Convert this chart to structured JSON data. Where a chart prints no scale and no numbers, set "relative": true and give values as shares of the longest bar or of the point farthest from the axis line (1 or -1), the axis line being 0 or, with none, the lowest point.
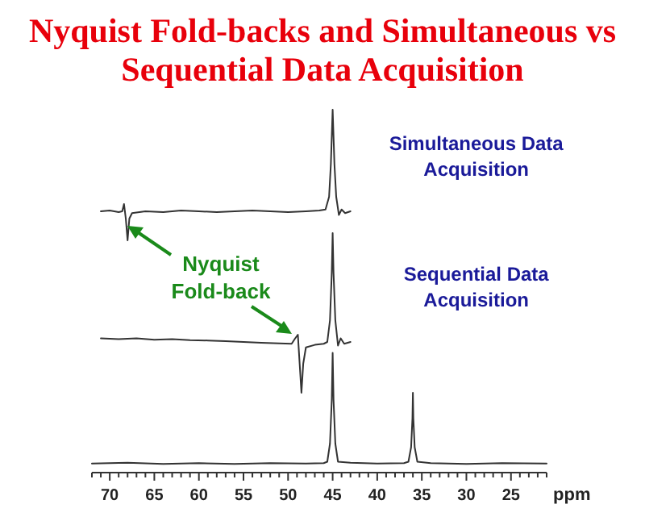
{
  "chart_data": {
    "type": "line",
    "relative": true,
    "title": "Nyquist Fold-backs and Simultaneous vs Sequential Data Acquisition",
    "xlabel": "ppm",
    "xlim": [
      72,
      21
    ],
    "xticks": [
      70,
      65,
      60,
      55,
      50,
      45,
      40,
      35,
      30,
      25,
      {
        "value": 72,
        "label": null
      },
      {
        "value": 71,
        "label": null
      },
      {
        "value": 69,
        "label": null
      },
      {
        "value": 68,
        "label": null
      },
      {
        "value": 67,
        "label": null
      },
      {
        "value": 66,
        "label": null
      },
      {
        "value": 64,
        "label": null
      },
      {
        "value": 63,
        "label": null
      },
      {
        "value": 62,
        "label": null
      },
      {
        "value": 61,
        "label": null
      },
      {
        "value": 59,
        "label": null
      },
      {
        "value": 58,
        "label": null
      },
      {
        "value": 57,
        "label": null
      },
      {
        "value": 56,
        "label": null
      },
      {
        "value": 54,
        "label": null
      },
      {
        "value": 53,
        "label": null
      },
      {
        "value": 52,
        "label": null
      },
      {
        "value": 51,
        "label": null
      },
      {
        "value": 49,
        "label": null
      },
      {
        "value": 48,
        "label": null
      },
      {
        "value": 47,
        "label": null
      },
      {
        "value": 46,
        "label": null
      },
      {
        "value": 44,
        "label": null
      },
      {
        "value": 43,
        "label": null
      },
      {
        "value": 42,
        "label": null
      },
      {
        "value": 41,
        "label": null
      },
      {
        "value": 39,
        "label": null
      },
      {
        "value": 38,
        "label": null
      },
      {
        "value": 37,
        "label": null
      },
      {
        "value": 36,
        "label": null
      },
      {
        "value": 34,
        "label": null
      },
      {
        "value": 33,
        "label": null
      },
      {
        "value": 32,
        "label": null
      },
      {
        "value": 31,
        "label": null
      },
      {
        "value": 29,
        "label": null
      },
      {
        "value": 28,
        "label": null
      },
      {
        "value": 27,
        "label": null
      },
      {
        "value": 26,
        "label": null
      },
      {
        "value": 24,
        "label": null
      },
      {
        "value": 23,
        "label": null
      },
      {
        "value": 22,
        "label": null
      },
      {
        "value": 21,
        "label": null
      }
    ],
    "annotations": [
      "Nyquist Fold-back"
    ],
    "series": [
      {
        "name": "Simultaneous Data Acquisition",
        "color": "#333333",
        "x": [
          71,
          70,
          69,
          68.6,
          68.4,
          68.2,
          68.0,
          67.8,
          67.5,
          66,
          64,
          62,
          60,
          58,
          56,
          54,
          52,
          50,
          48,
          46.5,
          45.8,
          45.4,
          45.2,
          45.0,
          44.8,
          44.6,
          44.3,
          44.0,
          43.6,
          43
        ],
        "values": [
          0.72,
          0.722,
          0.718,
          0.72,
          0.74,
          0.7,
          0.64,
          0.7,
          0.715,
          0.72,
          0.718,
          0.722,
          0.72,
          0.718,
          0.72,
          0.722,
          0.72,
          0.718,
          0.72,
          0.722,
          0.725,
          0.76,
          0.85,
          1.0,
          0.85,
          0.76,
          0.71,
          0.725,
          0.715,
          0.72
        ]
      },
      {
        "name": "Sequential Data Acquisition",
        "color": "#333333",
        "x": [
          71,
          69,
          67,
          65,
          63,
          61,
          59,
          57,
          55,
          53,
          51,
          49.6,
          49.2,
          48.9,
          48.7,
          48.5,
          48.3,
          48.0,
          47,
          46,
          45.6,
          45.3,
          45.1,
          45.0,
          44.9,
          44.7,
          44.4,
          44.1,
          43.7,
          43
        ],
        "values": [
          0.37,
          0.368,
          0.37,
          0.366,
          0.368,
          0.365,
          0.364,
          0.362,
          0.36,
          0.358,
          0.356,
          0.355,
          0.37,
          0.38,
          0.3,
          0.22,
          0.3,
          0.345,
          0.352,
          0.355,
          0.36,
          0.42,
          0.55,
          0.66,
          0.55,
          0.42,
          0.35,
          0.37,
          0.355,
          0.36
        ]
      },
      {
        "color": "#333333",
        "x": [
          72,
          68,
          64,
          60,
          56,
          52,
          48,
          46,
          45.6,
          45.3,
          45.1,
          45.0,
          44.9,
          44.7,
          44.4,
          43,
          40,
          37,
          36.5,
          36.2,
          36.05,
          36.0,
          35.95,
          35.8,
          35.5,
          34,
          30,
          26,
          21
        ],
        "values": [
          0.025,
          0.027,
          0.024,
          0.026,
          0.024,
          0.026,
          0.025,
          0.026,
          0.03,
          0.08,
          0.2,
          0.33,
          0.2,
          0.08,
          0.03,
          0.027,
          0.025,
          0.026,
          0.03,
          0.07,
          0.15,
          0.22,
          0.15,
          0.07,
          0.03,
          0.026,
          0.024,
          0.026,
          0.025
        ]
      }
    ]
  }
}
